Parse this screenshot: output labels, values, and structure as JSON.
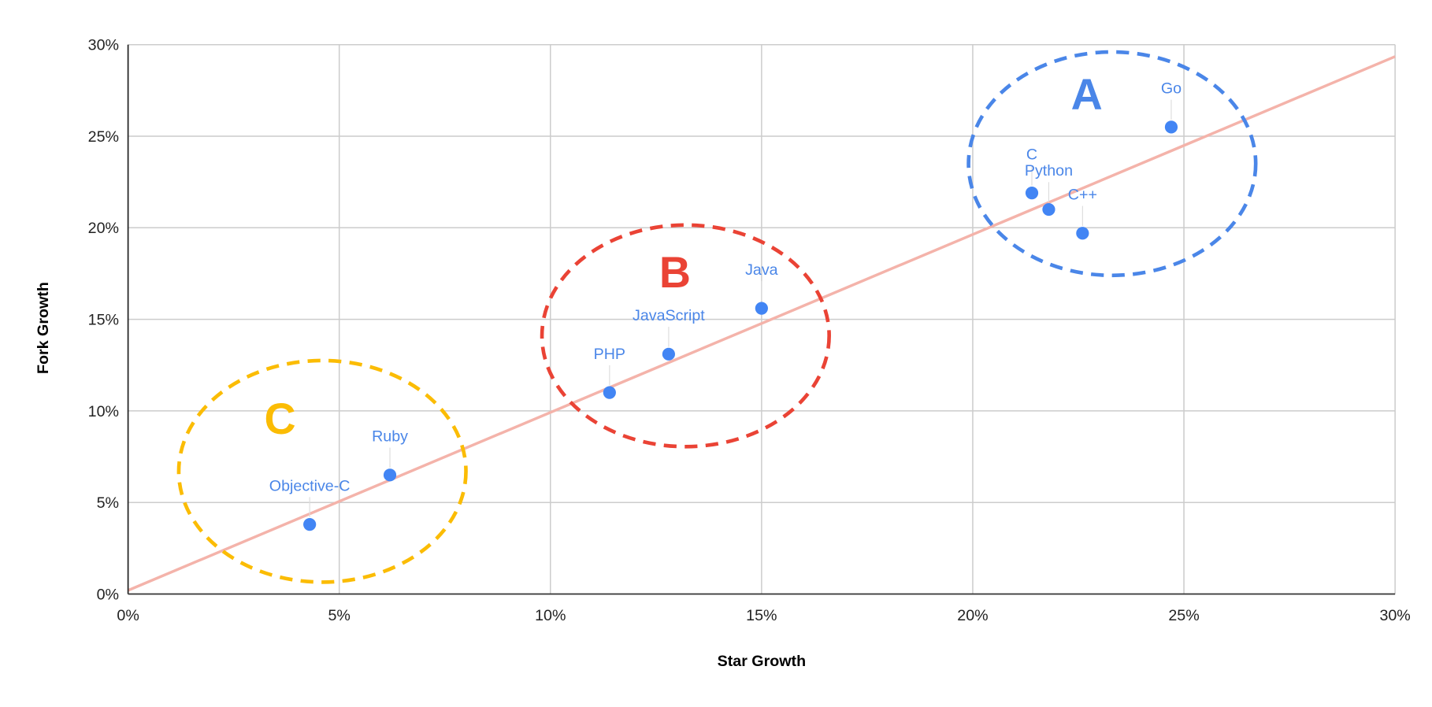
{
  "chart_data": {
    "type": "scatter",
    "title": "",
    "xlabel": "Star Growth",
    "ylabel": "Fork Growth",
    "xlim": [
      0,
      30
    ],
    "ylim": [
      0,
      30
    ],
    "x_ticks": [
      "0%",
      "5%",
      "10%",
      "15%",
      "20%",
      "25%",
      "30%"
    ],
    "y_ticks": [
      "0%",
      "5%",
      "10%",
      "15%",
      "20%",
      "25%",
      "30%"
    ],
    "grid": true,
    "point_color": "#4285f4",
    "points": [
      {
        "label": "Objective-C",
        "x": 4.3,
        "y": 3.8
      },
      {
        "label": "Ruby",
        "x": 6.2,
        "y": 6.5
      },
      {
        "label": "PHP",
        "x": 11.4,
        "y": 11.0
      },
      {
        "label": "JavaScript",
        "x": 12.8,
        "y": 13.1
      },
      {
        "label": "Java",
        "x": 15.0,
        "y": 15.6
      },
      {
        "label": "C",
        "x": 21.4,
        "y": 21.9
      },
      {
        "label": "Python",
        "x": 21.8,
        "y": 21.0
      },
      {
        "label": "C++",
        "x": 22.6,
        "y": 19.7
      },
      {
        "label": "Go",
        "x": 24.7,
        "y": 25.5
      }
    ],
    "trendline": {
      "type": "linear",
      "from": [
        0,
        0.2
      ],
      "to": [
        30,
        29.35
      ],
      "color": "#f4b3aa"
    },
    "annotations": [
      {
        "label": "A",
        "color": "#4a86e8",
        "cx": 23.3,
        "cy": 23.5,
        "rx": 3.4,
        "ry": 6.1,
        "label_x": 22.7,
        "label_y": 27.3
      },
      {
        "label": "B",
        "color": "#ea4335",
        "cx": 13.2,
        "cy": 14.1,
        "rx": 3.4,
        "ry": 6.05,
        "label_x": 12.95,
        "label_y": 17.6
      },
      {
        "label": "C",
        "color": "#fbbc04",
        "cx": 4.6,
        "cy": 6.7,
        "rx": 3.4,
        "ry": 6.05,
        "label_x": 3.6,
        "label_y": 9.6
      }
    ]
  }
}
